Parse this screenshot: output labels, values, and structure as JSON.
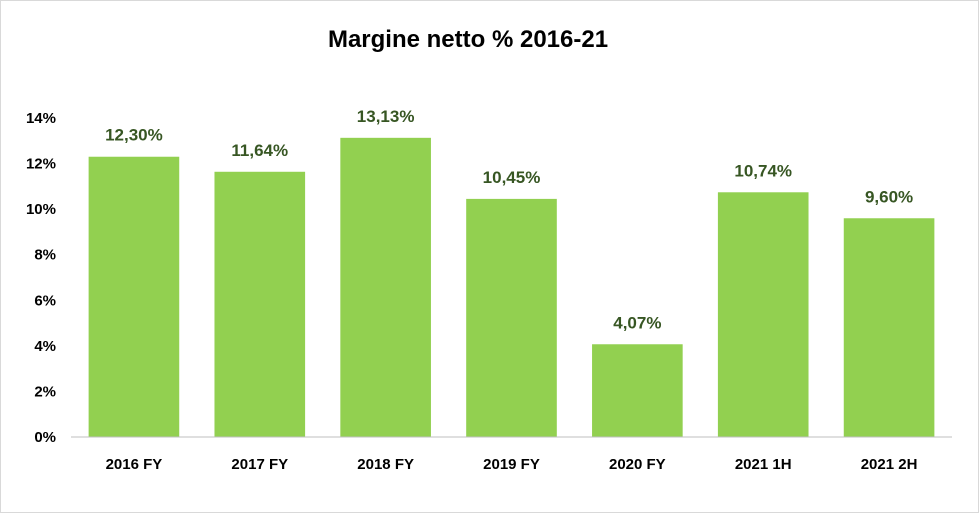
{
  "chart_data": {
    "type": "bar",
    "title": "Margine netto % 2016-21",
    "categories": [
      "2016 FY",
      "2017 FY",
      "2018 FY",
      "2019 FY",
      "2020 FY",
      "2021 1H",
      "2021 2H"
    ],
    "values": [
      12.3,
      11.64,
      13.13,
      10.45,
      4.07,
      10.74,
      9.6
    ],
    "data_labels": [
      "12,30%",
      "11,64%",
      "13,13%",
      "10,45%",
      "4,07%",
      "10,74%",
      "9,60%"
    ],
    "yticks": [
      "0%",
      "2%",
      "4%",
      "6%",
      "8%",
      "10%",
      "12%",
      "14%"
    ],
    "ylim": [
      0,
      14
    ],
    "xlabel": "",
    "ylabel": "",
    "grid": false,
    "legend": "none",
    "colors": {
      "bar": "#92d050",
      "label": "#375623",
      "axis": "#bfbfbf"
    }
  }
}
